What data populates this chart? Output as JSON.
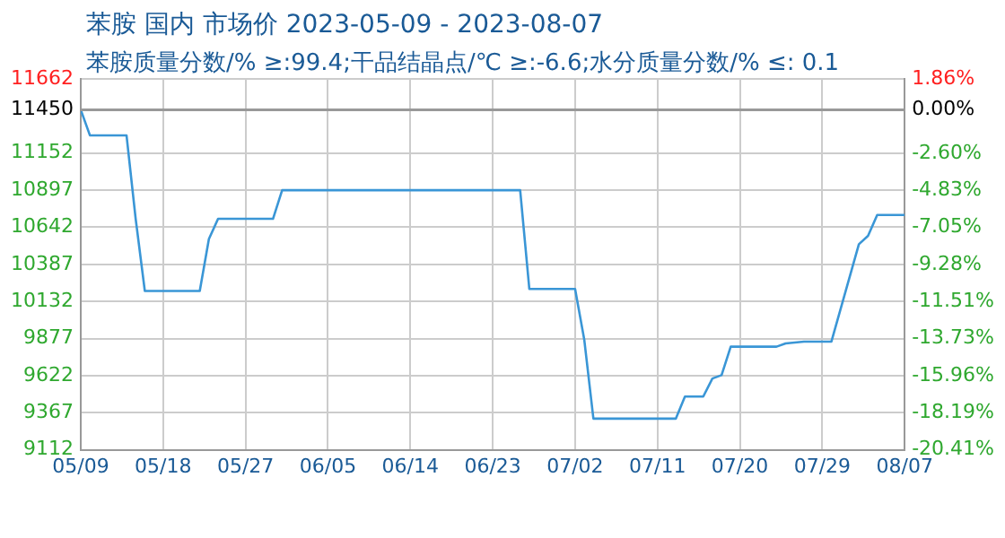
{
  "chart_data": {
    "type": "line",
    "title": "苯胺 国内 市场价 2023-05-09 - 2023-08-07",
    "subtitle": "苯胺质量分数/% ≥:99.4;干品结晶点/℃   ≥:-6.6;水分质量分数/%  ≤: 0.1",
    "x": [
      "2023-05-09",
      "2023-05-10",
      "2023-05-14",
      "2023-05-15",
      "2023-05-16",
      "2023-05-22",
      "2023-05-23",
      "2023-05-24",
      "2023-05-30",
      "2023-05-31",
      "2023-06-26",
      "2023-06-27",
      "2023-07-02",
      "2023-07-03",
      "2023-07-04",
      "2023-07-13",
      "2023-07-14",
      "2023-07-16",
      "2023-07-17",
      "2023-07-18",
      "2023-07-19",
      "2023-07-24",
      "2023-07-25",
      "2023-07-27",
      "2023-07-30",
      "2023-08-02",
      "2023-08-03",
      "2023-08-04",
      "2023-08-07"
    ],
    "series": [
      {
        "color": "#3a96d6",
        "values": [
          11450,
          11274,
          11274,
          10700,
          10204,
          10204,
          10561,
          10700,
          10700,
          10897,
          10897,
          10218,
          10218,
          9870,
          9326,
          9326,
          9478,
          9478,
          9602,
          9625,
          9821,
          9821,
          9843,
          9856,
          9856,
          10525,
          10583,
          10726,
          10726
        ]
      }
    ],
    "xlim": [
      "2023-05-09",
      "2023-08-07"
    ],
    "xticks": [
      {
        "value": "2023-05-09",
        "label": "05/09"
      },
      {
        "value": "2023-05-18",
        "label": "05/18"
      },
      {
        "value": "2023-05-27",
        "label": "05/27"
      },
      {
        "value": "2023-06-05",
        "label": "06/05"
      },
      {
        "value": "2023-06-14",
        "label": "06/14"
      },
      {
        "value": "2023-06-23",
        "label": "06/23"
      },
      {
        "value": "2023-07-02",
        "label": "07/02"
      },
      {
        "value": "2023-07-11",
        "label": "07/11"
      },
      {
        "value": "2023-07-20",
        "label": "07/20"
      },
      {
        "value": "2023-07-29",
        "label": "07/29"
      },
      {
        "value": "2023-08-07",
        "label": "08/07"
      }
    ],
    "ylim": [
      9112,
      11662
    ],
    "yticks": [
      9112,
      9367,
      9622,
      9877,
      10132,
      10387,
      10642,
      10897,
      11152,
      11450,
      11662
    ],
    "y2lim": [
      -20.41,
      1.86
    ],
    "y2ticks": [
      {
        "value": -20.41,
        "label": "-20.41%"
      },
      {
        "value": -18.19,
        "label": "-18.19%"
      },
      {
        "value": -15.96,
        "label": "-15.96%"
      },
      {
        "value": -13.73,
        "label": "-13.73%"
      },
      {
        "value": -11.51,
        "label": "-11.51%"
      },
      {
        "value": -9.28,
        "label": "-9.28%"
      },
      {
        "value": -7.05,
        "label": "-7.05%"
      },
      {
        "value": -4.83,
        "label": "-4.83%"
      },
      {
        "value": -2.6,
        "label": "-2.60%"
      },
      {
        "value": 0,
        "label": "0.00%"
      },
      {
        "value": 1.86,
        "label": "1.86%"
      }
    ],
    "ref_lines": [
      {
        "axis": "y",
        "value": 11450,
        "color": "#999999"
      }
    ],
    "grid": true,
    "legend": false,
    "marker": "none",
    "line_style": "solid"
  }
}
